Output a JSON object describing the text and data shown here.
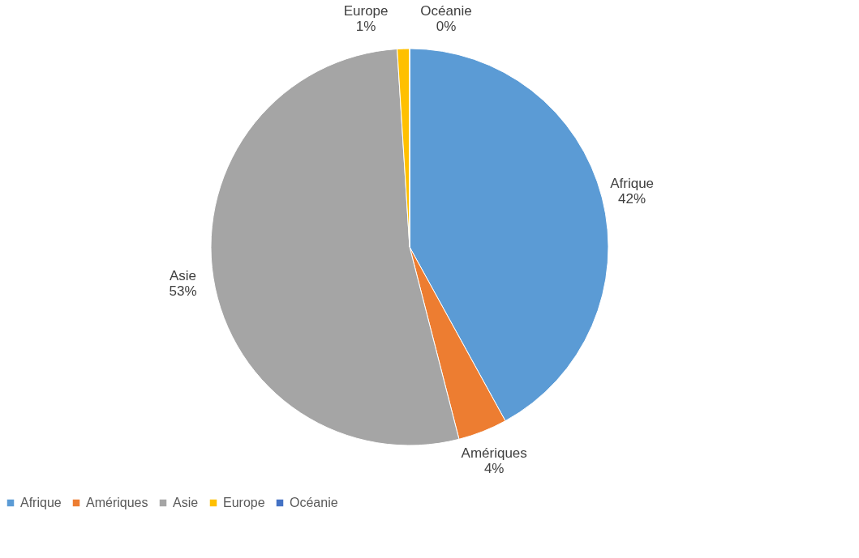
{
  "chart_data": {
    "type": "pie",
    "categories": [
      "Afrique",
      "Amériques",
      "Asie",
      "Europe",
      "Océanie"
    ],
    "values": [
      42,
      4,
      53,
      1,
      0
    ],
    "value_labels": [
      "42%",
      "4%",
      "53%",
      "1%",
      "0%"
    ],
    "colors": [
      "#5b9bd5",
      "#ed7d31",
      "#a5a5a5",
      "#ffc000",
      "#4472c4"
    ],
    "legend": "bottom"
  }
}
